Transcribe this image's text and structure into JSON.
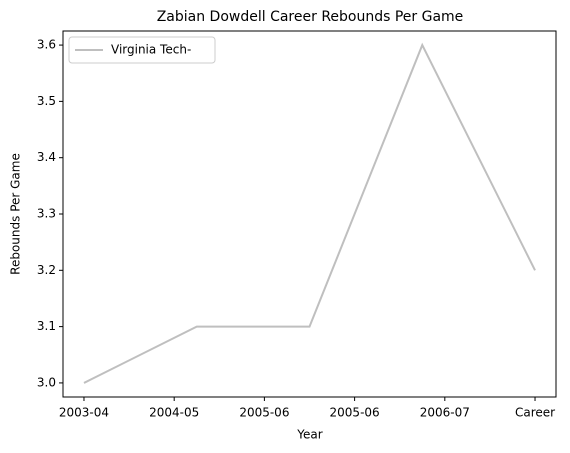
{
  "chart_data": {
    "type": "line",
    "title": "Zabian Dowdell Career Rebounds Per Game",
    "xlabel": "Year",
    "ylabel": "Rebounds Per Game",
    "x": [
      0,
      1,
      2,
      3,
      4
    ],
    "series": [
      {
        "name": "Virginia Tech-",
        "color": "#bfbfbf",
        "values": [
          3.0,
          3.1,
          3.1,
          3.6,
          3.2
        ]
      }
    ],
    "xlim": [
      -0.186,
      4.186
    ],
    "xticks": [
      {
        "value": 0,
        "label": "2003-04"
      },
      {
        "value": 0.8,
        "label": "2004-05"
      },
      {
        "value": 1.6,
        "label": "2005-06"
      },
      {
        "value": 2.4,
        "label": "2005-06"
      },
      {
        "value": 3.2,
        "label": "2006-07"
      },
      {
        "value": 4.0,
        "label": "Career"
      }
    ],
    "ylim": [
      2.975,
      3.625
    ],
    "yticks": [
      {
        "value": 3.0,
        "label": "3.0"
      },
      3.1,
      3.2,
      3.3,
      3.4,
      3.5,
      3.6
    ],
    "grid": false,
    "legend": "upper left"
  }
}
